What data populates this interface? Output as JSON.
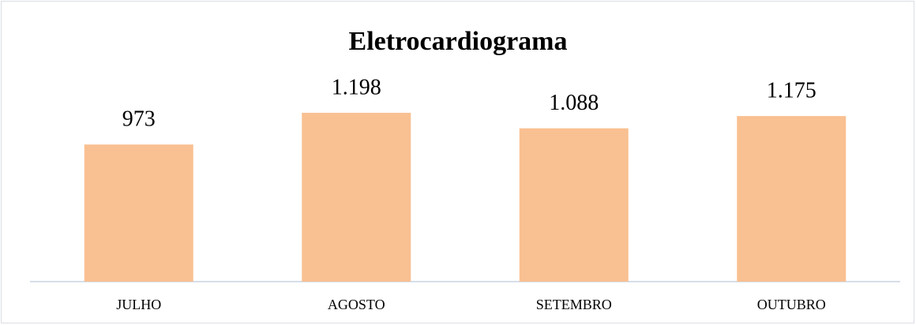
{
  "chart_data": {
    "type": "bar",
    "title": "Eletrocardiograma",
    "categories": [
      "JULHO",
      "AGOSTO",
      "SETEMBRO",
      "OUTUBRO"
    ],
    "values": [
      973,
      1198,
      1088,
      1175
    ],
    "value_labels": [
      "973",
      "1.198",
      "1.088",
      "1.175"
    ],
    "color": "#f9c091"
  }
}
